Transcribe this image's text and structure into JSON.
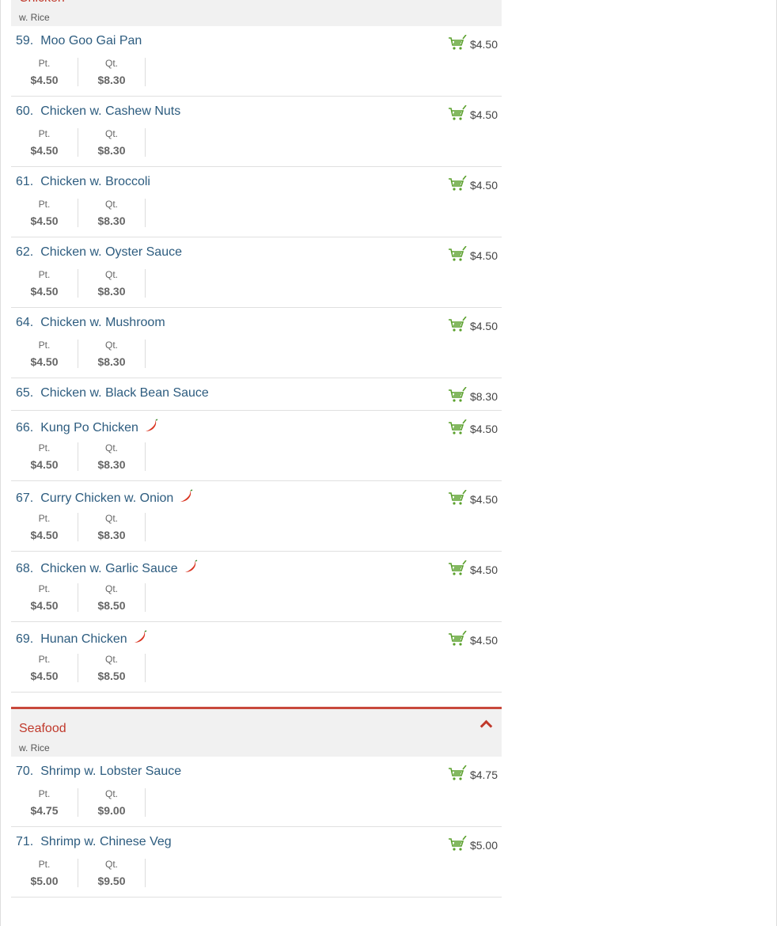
{
  "categories": [
    {
      "name": "Chicken",
      "description": "w. Rice",
      "items": [
        {
          "number": "59.",
          "name": "Moo Goo Gai Pan",
          "price": "$4.50",
          "spicy": false,
          "sizes": [
            {
              "label": "Pt.",
              "price": "$4.50"
            },
            {
              "label": "Qt.",
              "price": "$8.30"
            }
          ]
        },
        {
          "number": "60.",
          "name": "Chicken w. Cashew Nuts",
          "price": "$4.50",
          "spicy": false,
          "sizes": [
            {
              "label": "Pt.",
              "price": "$4.50"
            },
            {
              "label": "Qt.",
              "price": "$8.30"
            }
          ]
        },
        {
          "number": "61.",
          "name": "Chicken w. Broccoli",
          "price": "$4.50",
          "spicy": false,
          "sizes": [
            {
              "label": "Pt.",
              "price": "$4.50"
            },
            {
              "label": "Qt.",
              "price": "$8.30"
            }
          ]
        },
        {
          "number": "62.",
          "name": "Chicken w. Oyster Sauce",
          "price": "$4.50",
          "spicy": false,
          "sizes": [
            {
              "label": "Pt.",
              "price": "$4.50"
            },
            {
              "label": "Qt.",
              "price": "$8.30"
            }
          ]
        },
        {
          "number": "64.",
          "name": "Chicken w. Mushroom",
          "price": "$4.50",
          "spicy": false,
          "sizes": [
            {
              "label": "Pt.",
              "price": "$4.50"
            },
            {
              "label": "Qt.",
              "price": "$8.30"
            }
          ]
        },
        {
          "number": "65.",
          "name": "Chicken w. Black Bean Sauce",
          "price": "$8.30",
          "spicy": false,
          "sizes": []
        },
        {
          "number": "66.",
          "name": "Kung Po Chicken",
          "price": "$4.50",
          "spicy": true,
          "sizes": [
            {
              "label": "Pt.",
              "price": "$4.50"
            },
            {
              "label": "Qt.",
              "price": "$8.30"
            }
          ]
        },
        {
          "number": "67.",
          "name": "Curry Chicken w. Onion",
          "price": "$4.50",
          "spicy": true,
          "sizes": [
            {
              "label": "Pt.",
              "price": "$4.50"
            },
            {
              "label": "Qt.",
              "price": "$8.30"
            }
          ]
        },
        {
          "number": "68.",
          "name": "Chicken w. Garlic Sauce",
          "price": "$4.50",
          "spicy": true,
          "sizes": [
            {
              "label": "Pt.",
              "price": "$4.50"
            },
            {
              "label": "Qt.",
              "price": "$8.50"
            }
          ]
        },
        {
          "number": "69.",
          "name": "Hunan Chicken",
          "price": "$4.50",
          "spicy": true,
          "sizes": [
            {
              "label": "Pt.",
              "price": "$4.50"
            },
            {
              "label": "Qt.",
              "price": "$8.50"
            }
          ]
        }
      ]
    },
    {
      "name": "Seafood",
      "description": "w. Rice",
      "items": [
        {
          "number": "70.",
          "name": "Shrimp w. Lobster Sauce",
          "price": "$4.75",
          "spicy": false,
          "sizes": [
            {
              "label": "Pt.",
              "price": "$4.75"
            },
            {
              "label": "Qt.",
              "price": "$9.00"
            }
          ]
        },
        {
          "number": "71.",
          "name": "Shrimp w. Chinese Veg",
          "price": "$5.00",
          "spicy": false,
          "sizes": [
            {
              "label": "Pt.",
              "price": "$5.00"
            },
            {
              "label": "Qt.",
              "price": "$9.50"
            }
          ]
        }
      ]
    }
  ],
  "colors": {
    "accent": "#c0392b",
    "item_title": "#2d5c7f",
    "cart": "#5aa02c"
  }
}
